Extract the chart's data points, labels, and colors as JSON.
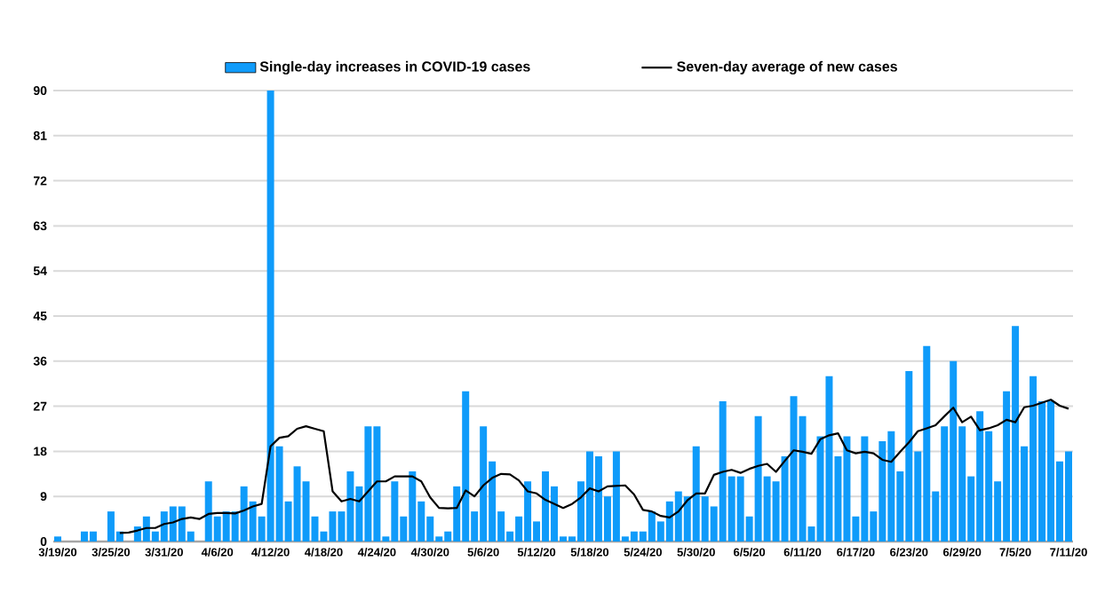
{
  "chart_data": {
    "type": "bar",
    "categories": [
      "3/19/20",
      null,
      null,
      null,
      null,
      null,
      "3/25/20",
      null,
      null,
      null,
      null,
      null,
      "3/31/20",
      null,
      null,
      null,
      null,
      null,
      "4/6/20",
      null,
      null,
      null,
      null,
      null,
      "4/12/20",
      null,
      null,
      null,
      null,
      null,
      "4/18/20",
      null,
      null,
      null,
      null,
      null,
      "4/24/20",
      null,
      null,
      null,
      null,
      null,
      "4/30/20",
      null,
      null,
      null,
      null,
      null,
      "5/6/20",
      null,
      null,
      null,
      null,
      null,
      "5/12/20",
      null,
      null,
      null,
      null,
      null,
      "5/18/20",
      null,
      null,
      null,
      null,
      null,
      "5/24/20",
      null,
      null,
      null,
      null,
      null,
      "5/30/20",
      null,
      null,
      null,
      null,
      null,
      "6/5/20",
      null,
      null,
      null,
      null,
      null,
      "6/11/20",
      null,
      null,
      null,
      null,
      null,
      "6/17/20",
      null,
      null,
      null,
      null,
      null,
      "6/23/20",
      null,
      null,
      null,
      null,
      null,
      "6/29/20",
      null,
      null,
      null,
      null,
      null,
      "7/5/20",
      null,
      null,
      null,
      null,
      null,
      "7/11/20"
    ],
    "series": [
      {
        "name": "Single-day increases in COVID-19 cases",
        "color": "#0f9bfa",
        "values": [
          1,
          0,
          0,
          2,
          2,
          0,
          6,
          2,
          0,
          3,
          5,
          2,
          6,
          7,
          7,
          2,
          0,
          12,
          5,
          6,
          6,
          11,
          8,
          5,
          90,
          19,
          8,
          15,
          12,
          5,
          2,
          6,
          6,
          14,
          11,
          23,
          23,
          1,
          12,
          5,
          14,
          8,
          5,
          1,
          2,
          11,
          30,
          6,
          23,
          16,
          6,
          2,
          5,
          12,
          4,
          14,
          11,
          1,
          1,
          12,
          18,
          17,
          9,
          18,
          1,
          2,
          2,
          6,
          4,
          8,
          10,
          9,
          19,
          9,
          7,
          28,
          13,
          13,
          5,
          25,
          13,
          12,
          17,
          29,
          25,
          3,
          21,
          33,
          17,
          21,
          5,
          21,
          6,
          20,
          22,
          14,
          34,
          18,
          39,
          10,
          23,
          36,
          23,
          13,
          26,
          22,
          12,
          30,
          43,
          19,
          33,
          28,
          28,
          16,
          18
        ]
      },
      {
        "name": "Seven-day average of new cases",
        "type": "line",
        "color": "#000000",
        "values": [
          null,
          null,
          null,
          null,
          null,
          null,
          null,
          1.7,
          1.8,
          2.2,
          2.7,
          2.7,
          3.5,
          3.8,
          4.5,
          4.8,
          4.5,
          5.5,
          5.7,
          5.7,
          5.6,
          6.2,
          7,
          7.5,
          19,
          20.7,
          21,
          22.5,
          23,
          22.5,
          22,
          10,
          8,
          8.5,
          8,
          10,
          12,
          12,
          13,
          13,
          13,
          12,
          8.8,
          6.7,
          6.6,
          6.7,
          10.2,
          9,
          11.2,
          12.7,
          13.5,
          13.4,
          12.2,
          10,
          9.6,
          8.3,
          7.5,
          6.7,
          7.5,
          8.8,
          10.6,
          10,
          11,
          11.1,
          11.2,
          9.4,
          6.3,
          6,
          5.1,
          4.8,
          6,
          8.2,
          9.6,
          9.6,
          13.3,
          13.9,
          14.3,
          13.7,
          14.5,
          15.1,
          15.5,
          13.9,
          16.1,
          18.2,
          17.9,
          17.5,
          20.4,
          21.2,
          21.6,
          18.2,
          17.6,
          17.9,
          17.6,
          16.3,
          15.9,
          17.9,
          19.8,
          22,
          22.6,
          23.2,
          25,
          26.7,
          23.8,
          24.9,
          22.2,
          22.6,
          23.2,
          24.3,
          23.8,
          26.8,
          27.1,
          27.7,
          28.3,
          27.1,
          26.5
        ]
      }
    ],
    "ylim": [
      0,
      90
    ],
    "yticks": [
      0,
      9,
      18,
      27,
      36,
      45,
      54,
      63,
      72,
      81,
      90
    ],
    "grid": "y",
    "legend": "top"
  }
}
